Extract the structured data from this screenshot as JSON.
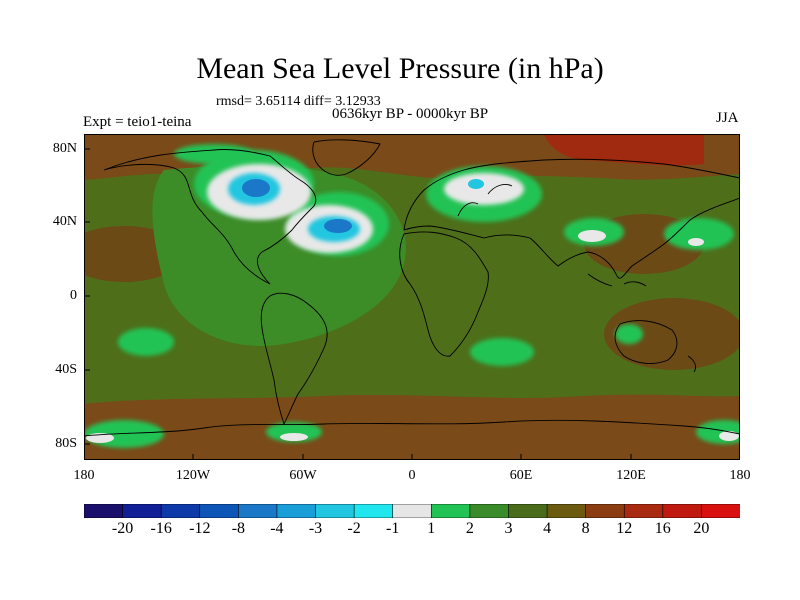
{
  "map": {
    "title": "Mean Sea Level Pressure (in hPa)",
    "stats": "rmsd= 3.65114  diff= 3.12933",
    "subtitle": "0636kyr BP - 0000kyr BP",
    "experiment": "Expt = teio1-teina",
    "season": "JJA",
    "lat_labels": [
      "80N",
      "40N",
      "0",
      "40S",
      "80S"
    ],
    "lon_labels": [
      "180",
      "120W",
      "60W",
      "0",
      "60E",
      "120E",
      "180"
    ]
  },
  "colorbar": {
    "labels": [
      "-20",
      "-16",
      "-12",
      "-8",
      "-4",
      "-3",
      "-2",
      "-1",
      "1",
      "2",
      "3",
      "4",
      "8",
      "12",
      "16",
      "20"
    ],
    "colors": [
      "#1a0f6b",
      "#101f96",
      "#0d3aa8",
      "#0e55b8",
      "#1b78c8",
      "#1a9ed8",
      "#22c6e0",
      "#22e6ee",
      "#e6e6e6",
      "#22c355",
      "#3a8c2a",
      "#4a6b1a",
      "#6b5a10",
      "#8b3c10",
      "#a82a10",
      "#c01a10",
      "#d81010"
    ]
  },
  "palette": {
    "bg_brown": "#7a4a18",
    "olive": "#4e6e1a",
    "green_dark": "#3c8c28",
    "green_bright": "#22c355",
    "white": "#e6e6e6",
    "cyan": "#22c6e0",
    "blue": "#1b78c8",
    "red": "#b82410"
  }
}
